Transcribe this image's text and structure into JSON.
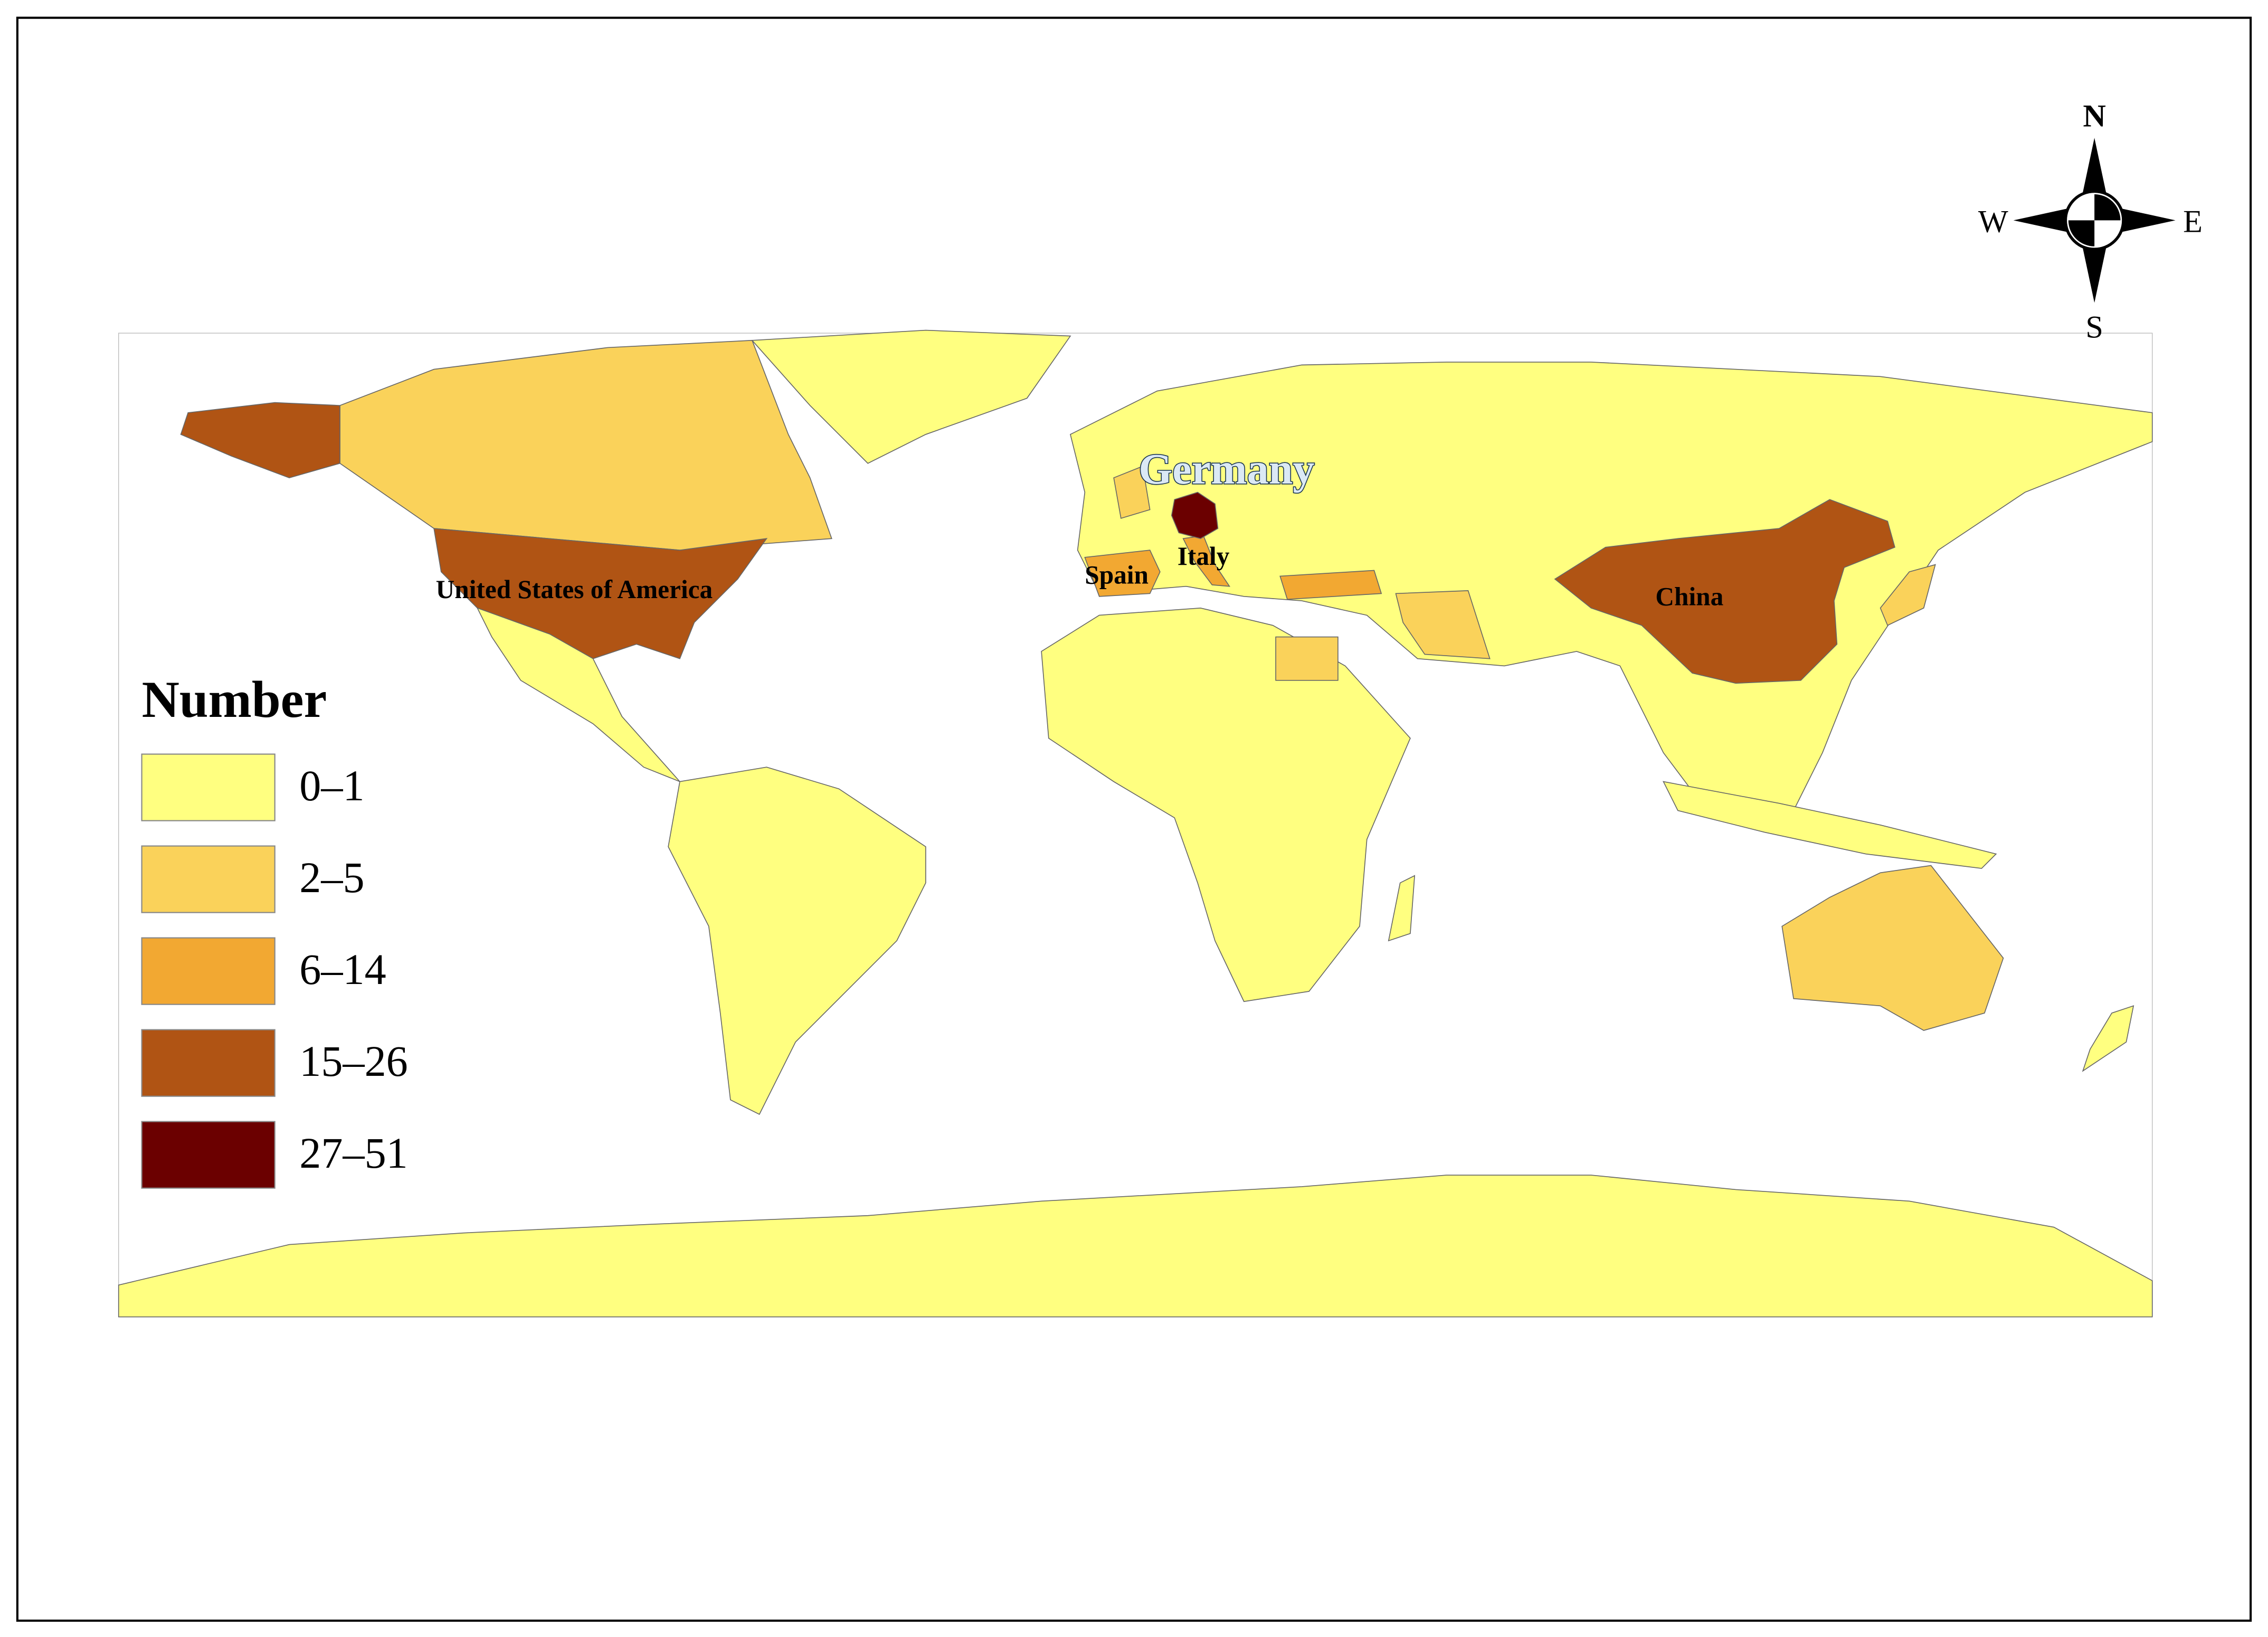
{
  "legend": {
    "title": "Number",
    "items": [
      {
        "label": "0–1",
        "color": "#ffff80"
      },
      {
        "label": "2–5",
        "color": "#fad25a"
      },
      {
        "label": "6–14",
        "color": "#f2a832"
      },
      {
        "label": "15–26",
        "color": "#b05414"
      },
      {
        "label": "27–51",
        "color": "#6b0000"
      }
    ]
  },
  "labels": [
    "Germany",
    "Italy",
    "Spain",
    "United States of America",
    "China"
  ],
  "compass": {
    "north": "N",
    "south": "S",
    "east": "E",
    "west": "W"
  }
}
